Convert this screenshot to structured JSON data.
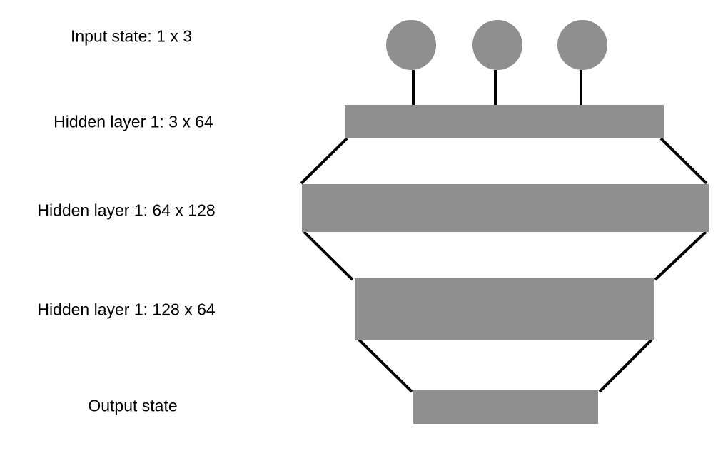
{
  "labels": {
    "input": "Input state: 1 x 3",
    "hidden1": "Hidden layer 1: 3 x 64",
    "hidden2": "Hidden layer 1: 64 x 128",
    "hidden3": "Hidden layer 1: 128 x 64",
    "output": "Output state"
  },
  "colors": {
    "node_fill": "#8f8f8f",
    "connector": "#000000",
    "text": "#000000",
    "background": "#ffffff"
  }
}
